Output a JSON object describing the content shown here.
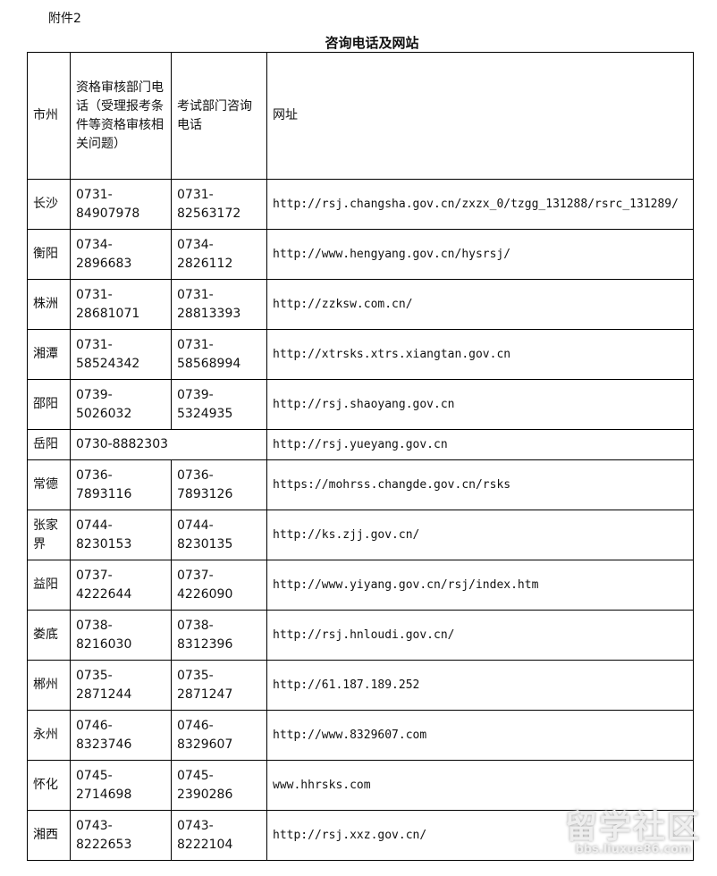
{
  "attachment": "附件2",
  "title": "咨询电话及网站",
  "headers": [
    "市州",
    "资格审核部门电话（受理报考条件等资格审核相关问题）",
    "考试部门咨询电话",
    "网址"
  ],
  "rows": [
    {
      "city": "长沙",
      "review": "0731-84907978",
      "exam": "0731-82563172",
      "url": "http://rsj.changsha.gov.cn/zxzx_0/tzgg_131288/rsrc_131289/"
    },
    {
      "city": "衡阳",
      "review": "0734-2896683",
      "exam": "0734-2826112",
      "url": "http://www.hengyang.gov.cn/hysrsj/"
    },
    {
      "city": "株洲",
      "review": "0731-28681071",
      "exam": "0731-28813393",
      "url": "http://zzksw.com.cn/"
    },
    {
      "city": "湘潭",
      "review": "0731-58524342",
      "exam": "0731-58568994",
      "url": "http://xtrsks.xtrs.xiangtan.gov.cn"
    },
    {
      "city": "邵阳",
      "review": "0739-5026032",
      "exam": "0739-5324935",
      "url": "http://rsj.shaoyang.gov.cn"
    },
    {
      "city": "岳阳",
      "review": "0730-8882303",
      "url": "http://rsj.yueyang.gov.cn"
    },
    {
      "city": "常德",
      "review": "0736-7893116",
      "exam": "0736-7893126",
      "url": "https://mohrss.changde.gov.cn/rsks"
    },
    {
      "city": "张家界",
      "review": "0744-8230153",
      "exam": "0744-8230135",
      "url": "http://ks.zjj.gov.cn/"
    },
    {
      "city": "益阳",
      "review": "0737-4222644",
      "exam": "0737-4226090",
      "url": "http://www.yiyang.gov.cn/rsj/index.htm"
    },
    {
      "city": "娄底",
      "review": "0738-8216030",
      "exam": "0738-8312396",
      "url": "http://rsj.hnloudi.gov.cn/"
    },
    {
      "city": "郴州",
      "review": "0735-2871244",
      "exam": "0735-2871247",
      "url": "http://61.187.189.252"
    },
    {
      "city": "永州",
      "review": "0746-8323746",
      "exam": "0746-8329607",
      "url": "http://www.8329607.com"
    },
    {
      "city": "怀化",
      "review": "0745-2714698",
      "exam": "0745-2390286",
      "url": "www.hhrsks.com"
    },
    {
      "city": "湘西",
      "review": "0743-8222653",
      "exam": "0743-8222104",
      "url": "http://rsj.xxz.gov.cn/"
    }
  ],
  "watermark": {
    "main": "留学社区",
    "sub": "bbs.liuxue86.com"
  }
}
